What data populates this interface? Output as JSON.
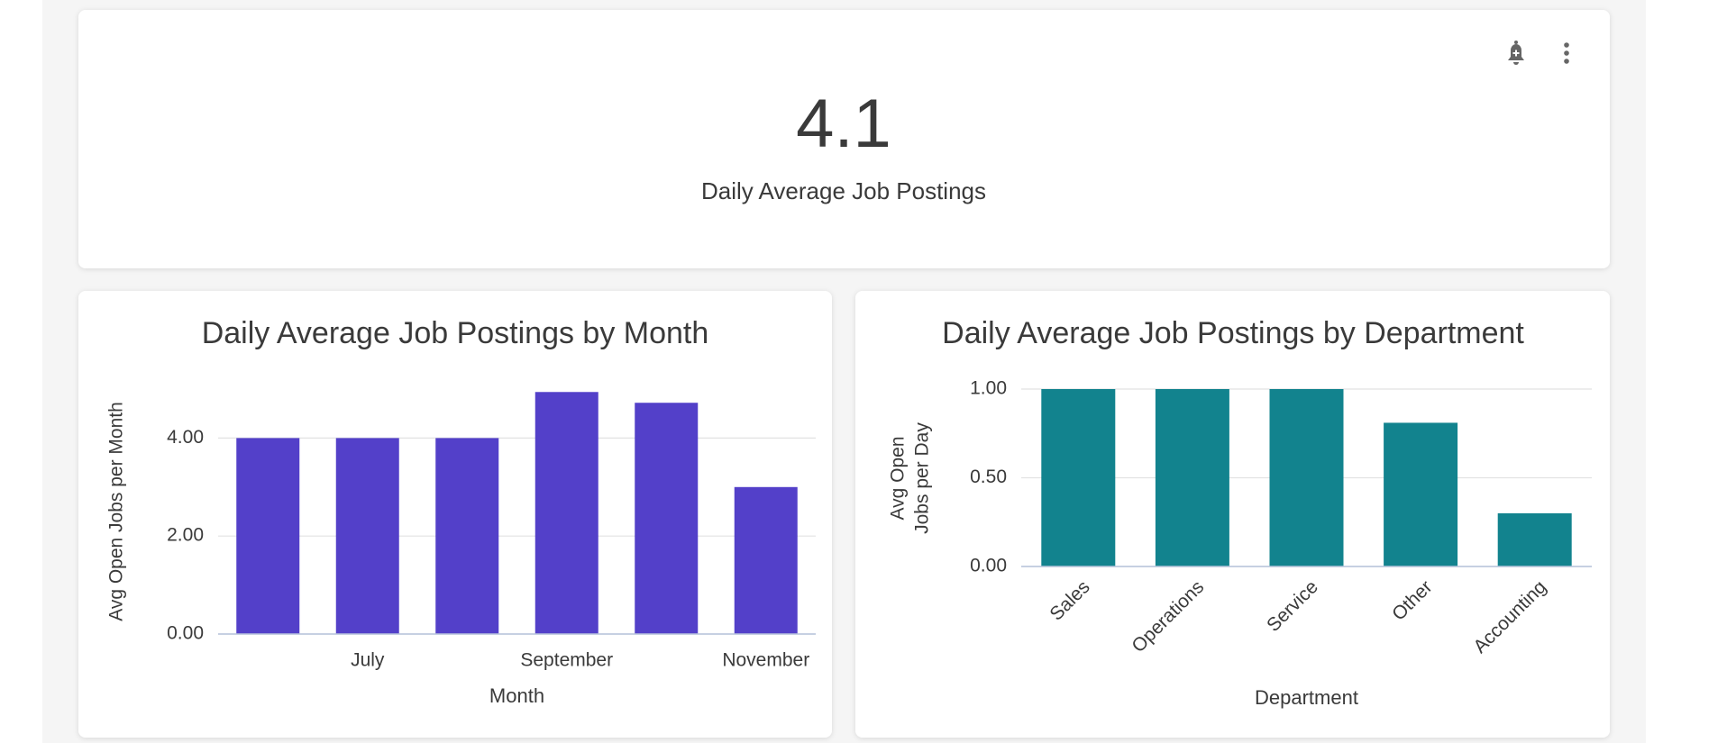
{
  "kpi": {
    "value": 4.1,
    "label": "Daily Average Job Postings"
  },
  "chart_data": [
    {
      "type": "bar",
      "title": "Daily Average Job Postings by Month",
      "x_label": "Month",
      "y_label": "Avg Open Jobs per Month",
      "categories": [
        null,
        "July",
        null,
        "September",
        null,
        "November"
      ],
      "values": [
        4.0,
        4.0,
        4.0,
        4.94,
        4.72,
        3.0
      ],
      "color": "#5340c9",
      "ylim": [
        0,
        5
      ],
      "yticks": [
        {
          "value": 0,
          "label": "0.00"
        },
        {
          "value": 2,
          "label": "2.00"
        },
        {
          "value": 4,
          "label": "4.00"
        }
      ],
      "grid": true
    },
    {
      "type": "bar",
      "title": "Daily Average Job Postings by Department",
      "x_label": "Department",
      "y_label": "Avg Open Jobs per Day",
      "categories": [
        "Sales",
        "Operations",
        "Service",
        "Other",
        "Accounting"
      ],
      "values": [
        1.0,
        1.0,
        1.0,
        0.81,
        0.3
      ],
      "color": "#12838e",
      "ylim": [
        0,
        1
      ],
      "yticks": [
        {
          "value": 0,
          "label": "0.00"
        },
        {
          "value": 0.5,
          "label": "0.50"
        },
        {
          "value": 1,
          "label": "1.00"
        }
      ],
      "grid": true
    }
  ]
}
